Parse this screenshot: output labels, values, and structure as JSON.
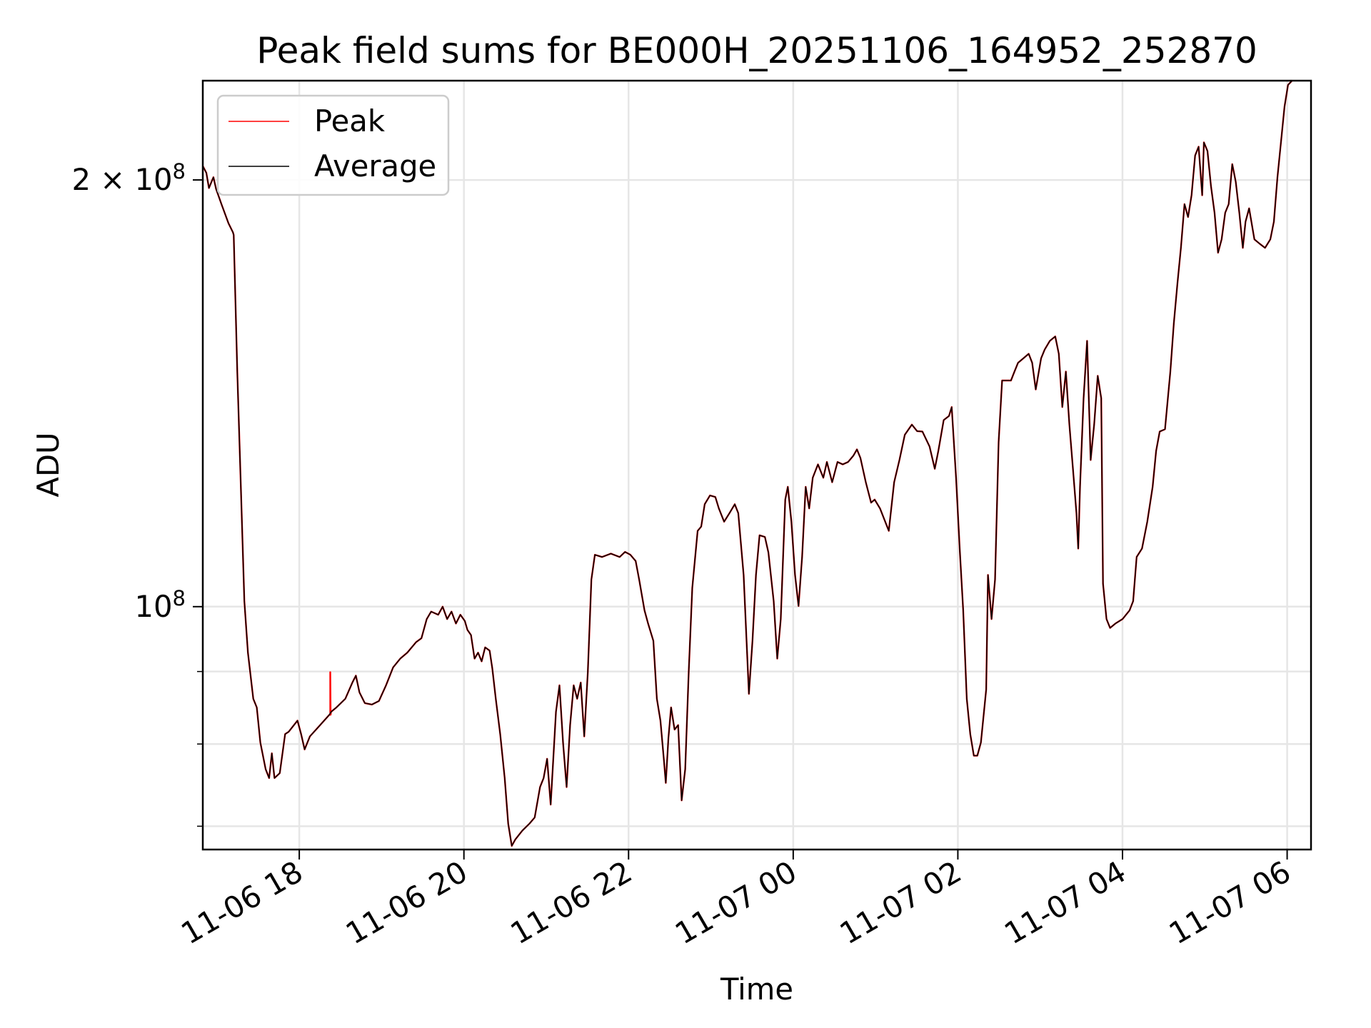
{
  "chart_data": {
    "type": "line",
    "title": "Peak field sums for BE000H_20251106_164952_252870",
    "xlabel": "Time",
    "ylabel": "ADU",
    "x_units": "hours since 2025-11-06 00:00",
    "xlim": [
      16.828,
      30.29
    ],
    "ylim": [
      67400000,
      235000000
    ],
    "yscale": "log",
    "grid": true,
    "legend_position": "top-left",
    "x_ticks": [
      {
        "value": 18,
        "label": "11-06 18"
      },
      {
        "value": 20,
        "label": "11-06 20"
      },
      {
        "value": 22,
        "label": "11-06 22"
      },
      {
        "value": 24,
        "label": "11-07 00"
      },
      {
        "value": 26,
        "label": "11-07 02"
      },
      {
        "value": 28,
        "label": "11-07 04"
      },
      {
        "value": 30,
        "label": "11-07 06"
      }
    ],
    "y_major_ticks": [
      {
        "value": 100000000,
        "base": "10",
        "exp": "8",
        "mult": ""
      },
      {
        "value": 200000000,
        "base": "10",
        "exp": "8",
        "mult": "2 × "
      }
    ],
    "y_minor_ticks": [
      70000000,
      80000000,
      90000000
    ],
    "value_scale": 100000000,
    "x": [
      16.828,
      16.871,
      16.903,
      16.957,
      16.989,
      17.054,
      17.14,
      17.194,
      17.204,
      17.247,
      17.29,
      17.333,
      17.376,
      17.441,
      17.484,
      17.527,
      17.591,
      17.634,
      17.667,
      17.699,
      17.763,
      17.828,
      17.871,
      17.935,
      17.978,
      18.022,
      18.065,
      18.129,
      18.237,
      18.366,
      18.387,
      18.452,
      18.559,
      18.645,
      18.688,
      18.731,
      18.796,
      18.882,
      18.968,
      19.054,
      19.14,
      19.226,
      19.312,
      19.419,
      19.484,
      19.548,
      19.602,
      19.688,
      19.742,
      19.796,
      19.849,
      19.903,
      19.957,
      20.011,
      20.043,
      20.086,
      20.129,
      20.172,
      20.215,
      20.258,
      20.312,
      20.344,
      20.387,
      20.441,
      20.495,
      20.538,
      20.581,
      20.624,
      20.71,
      20.796,
      20.86,
      20.925,
      20.968,
      21.011,
      21.054,
      21.118,
      21.161,
      21.204,
      21.247,
      21.29,
      21.333,
      21.376,
      21.419,
      21.462,
      21.505,
      21.548,
      21.591,
      21.677,
      21.785,
      21.892,
      21.957,
      22.022,
      22.086,
      22.129,
      22.194,
      22.237,
      22.301,
      22.344,
      22.387,
      22.43,
      22.452,
      22.484,
      22.516,
      22.559,
      22.602,
      22.645,
      22.688,
      22.731,
      22.774,
      22.839,
      22.882,
      22.925,
      22.989,
      23.054,
      23.097,
      23.161,
      23.226,
      23.29,
      23.333,
      23.398,
      23.462,
      23.505,
      23.548,
      23.591,
      23.656,
      23.699,
      23.763,
      23.806,
      23.849,
      23.903,
      23.935,
      23.978,
      24.022,
      24.065,
      24.108,
      24.151,
      24.194,
      24.237,
      24.301,
      24.366,
      24.409,
      24.473,
      24.538,
      24.602,
      24.667,
      24.731,
      24.774,
      24.817,
      24.882,
      24.946,
      24.989,
      25.054,
      25.118,
      25.161,
      25.226,
      25.29,
      25.355,
      25.441,
      25.505,
      25.57,
      25.656,
      25.72,
      25.763,
      25.828,
      25.892,
      25.925,
      25.978,
      26.022,
      26.065,
      26.108,
      26.151,
      26.194,
      26.237,
      26.28,
      26.344,
      26.366,
      26.409,
      26.452,
      26.495,
      26.538,
      26.602,
      26.645,
      26.688,
      26.731,
      26.796,
      26.86,
      26.903,
      26.946,
      27.011,
      27.054,
      27.118,
      27.183,
      27.226,
      27.269,
      27.312,
      27.355,
      27.398,
      27.441,
      27.462,
      27.484,
      27.527,
      27.57,
      27.613,
      27.656,
      27.699,
      27.742,
      27.763,
      27.806,
      27.849,
      27.914,
      28.0,
      28.086,
      28.129,
      28.172,
      28.237,
      28.301,
      28.366,
      28.409,
      28.452,
      28.516,
      28.581,
      28.624,
      28.667,
      28.71,
      28.753,
      28.796,
      28.839,
      28.882,
      28.925,
      28.968,
      28.989,
      29.032,
      29.075,
      29.118,
      29.161,
      29.204,
      29.247,
      29.29,
      29.333,
      29.376,
      29.419,
      29.462,
      29.495,
      29.538,
      29.602,
      29.667,
      29.731,
      29.796,
      29.839,
      29.882,
      29.925,
      29.968,
      30.011,
      30.054,
      30.29
    ],
    "series": [
      {
        "name": "Average",
        "color": "#000000",
        "values": [
          2.046,
          2.023,
          1.974,
          2.009,
          1.971,
          1.923,
          1.864,
          1.837,
          1.829,
          1.465,
          1.215,
          1.009,
          0.928,
          0.861,
          0.849,
          0.802,
          0.768,
          0.757,
          0.788,
          0.757,
          0.763,
          0.813,
          0.816,
          0.825,
          0.831,
          0.813,
          0.793,
          0.81,
          0.823,
          0.839,
          0.843,
          0.849,
          0.861,
          0.884,
          0.894,
          0.87,
          0.855,
          0.853,
          0.858,
          0.88,
          0.906,
          0.919,
          0.928,
          0.944,
          0.95,
          0.98,
          0.992,
          0.987,
          1.0,
          0.98,
          0.992,
          0.973,
          0.987,
          0.977,
          0.963,
          0.955,
          0.919,
          0.928,
          0.915,
          0.936,
          0.931,
          0.905,
          0.861,
          0.813,
          0.757,
          0.703,
          0.678,
          0.685,
          0.695,
          0.703,
          0.71,
          0.746,
          0.757,
          0.781,
          0.725,
          0.843,
          0.88,
          0.802,
          0.746,
          0.825,
          0.88,
          0.861,
          0.884,
          0.81,
          0.899,
          1.045,
          1.088,
          1.084,
          1.09,
          1.084,
          1.093,
          1.088,
          1.077,
          1.045,
          0.994,
          0.973,
          0.946,
          0.861,
          0.831,
          0.779,
          0.751,
          0.808,
          0.849,
          0.819,
          0.825,
          0.73,
          0.768,
          0.899,
          1.031,
          1.131,
          1.139,
          1.181,
          1.198,
          1.195,
          1.173,
          1.148,
          1.164,
          1.181,
          1.164,
          1.053,
          0.868,
          0.946,
          1.053,
          1.123,
          1.12,
          1.092,
          1.009,
          0.919,
          0.98,
          1.19,
          1.215,
          1.148,
          1.053,
          1.001,
          1.084,
          1.215,
          1.173,
          1.233,
          1.26,
          1.233,
          1.265,
          1.224,
          1.265,
          1.26,
          1.265,
          1.278,
          1.291,
          1.273,
          1.224,
          1.184,
          1.19,
          1.173,
          1.148,
          1.131,
          1.224,
          1.269,
          1.322,
          1.344,
          1.33,
          1.329,
          1.297,
          1.251,
          1.288,
          1.354,
          1.363,
          1.383,
          1.233,
          1.099,
          0.994,
          0.861,
          0.813,
          0.785,
          0.785,
          0.802,
          0.874,
          1.053,
          0.98,
          1.045,
          1.306,
          1.444,
          1.444,
          1.444,
          1.465,
          1.486,
          1.497,
          1.508,
          1.486,
          1.423,
          1.497,
          1.518,
          1.54,
          1.551,
          1.508,
          1.383,
          1.465,
          1.344,
          1.251,
          1.164,
          1.099,
          1.215,
          1.403,
          1.54,
          1.269,
          1.344,
          1.455,
          1.403,
          1.038,
          0.98,
          0.966,
          0.973,
          0.98,
          0.994,
          1.009,
          1.084,
          1.099,
          1.148,
          1.215,
          1.288,
          1.329,
          1.334,
          1.465,
          1.585,
          1.69,
          1.791,
          1.923,
          1.883,
          1.951,
          2.081,
          2.111,
          1.951,
          2.126,
          2.096,
          1.98,
          1.896,
          1.777,
          1.816,
          1.896,
          1.923,
          2.052,
          1.994,
          1.896,
          1.791,
          1.869,
          1.91,
          1.816,
          1.803,
          1.791,
          1.816,
          1.869,
          2.009,
          2.126,
          2.253,
          2.334,
          2.348,
          2.45
        ]
      },
      {
        "name": "Peak",
        "color": "#ff0000",
        "same_as": "Average",
        "extra_points": [
          {
            "x": 18.376,
            "value": 0.899
          }
        ]
      }
    ]
  }
}
